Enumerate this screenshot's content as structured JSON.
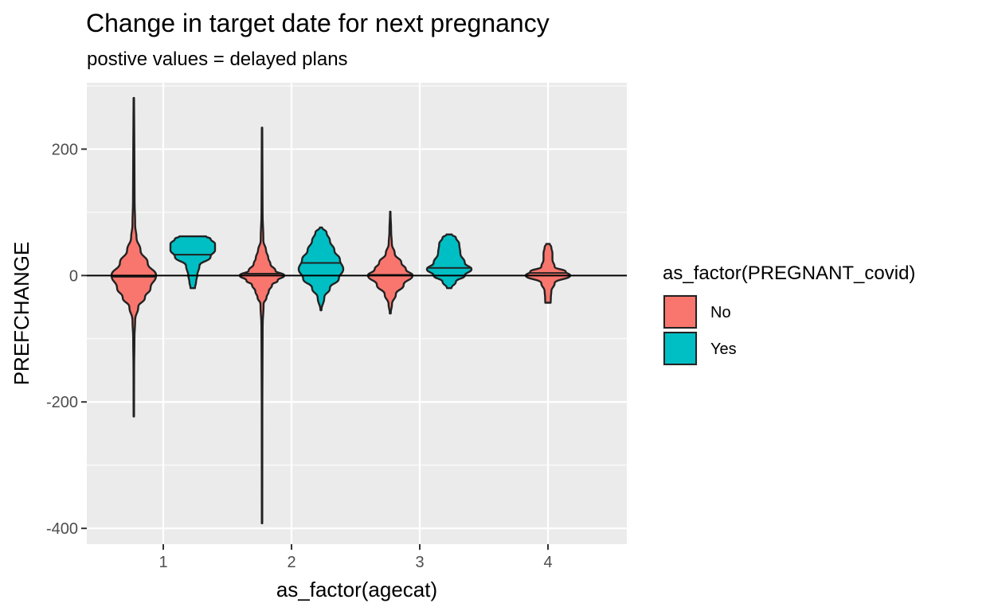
{
  "chart_data": {
    "type": "violin",
    "title": "Change in target date for next pregnancy",
    "subtitle": "postive values = delayed plans",
    "xlabel": "as_factor(agecat)",
    "ylabel": "PREFCHANGE",
    "categories": [
      "1",
      "2",
      "3",
      "4"
    ],
    "y_ticks": [
      -400,
      -200,
      0,
      200
    ],
    "y_tick_labels": [
      "-400",
      "-200",
      "0",
      "200"
    ],
    "ylim": [
      -425,
      305
    ],
    "grid": true,
    "reference_line_y": 0,
    "legend": {
      "title": "as_factor(PREGNANT_covid)",
      "position": "right",
      "entries": [
        {
          "label": "No",
          "color": "#F8766D"
        },
        {
          "label": "Yes",
          "color": "#00BFC4"
        }
      ]
    },
    "series": [
      {
        "name": "No",
        "color": "#F8766D",
        "violins": [
          {
            "category": "1",
            "min": -223,
            "max": 281,
            "median": -2,
            "profile": [
              [
                -223,
                0.01
              ],
              [
                -150,
                0.015
              ],
              [
                -100,
                0.03
              ],
              [
                -70,
                0.06
              ],
              [
                -50,
                0.2
              ],
              [
                -35,
                0.5
              ],
              [
                -20,
                0.75
              ],
              [
                0,
                1.0
              ],
              [
                20,
                0.62
              ],
              [
                40,
                0.3
              ],
              [
                60,
                0.12
              ],
              [
                80,
                0.06
              ],
              [
                120,
                0.035
              ],
              [
                200,
                0.025
              ],
              [
                281,
                0.01
              ]
            ]
          },
          {
            "category": "2",
            "min": -392,
            "max": 234,
            "median": 3,
            "profile": [
              [
                -392,
                0.01
              ],
              [
                -200,
                0.015
              ],
              [
                -80,
                0.03
              ],
              [
                -45,
                0.07
              ],
              [
                -35,
                0.2
              ],
              [
                -25,
                0.3
              ],
              [
                -15,
                0.45
              ],
              [
                -8,
                0.7
              ],
              [
                0,
                1.0
              ],
              [
                8,
                0.6
              ],
              [
                18,
                0.38
              ],
              [
                28,
                0.28
              ],
              [
                40,
                0.18
              ],
              [
                55,
                0.06
              ],
              [
                100,
                0.025
              ],
              [
                234,
                0.01
              ]
            ]
          },
          {
            "category": "3",
            "min": -60,
            "max": 101,
            "median": 1,
            "profile": [
              [
                -60,
                0.02
              ],
              [
                -45,
                0.08
              ],
              [
                -30,
                0.25
              ],
              [
                -15,
                0.6
              ],
              [
                0,
                1.0
              ],
              [
                10,
                0.7
              ],
              [
                20,
                0.5
              ],
              [
                35,
                0.2
              ],
              [
                50,
                0.07
              ],
              [
                70,
                0.04
              ],
              [
                101,
                0.01
              ]
            ]
          },
          {
            "category": "4",
            "min": -43,
            "max": 50,
            "median": 4,
            "profile": [
              [
                -43,
                0.12
              ],
              [
                -35,
                0.13
              ],
              [
                -25,
                0.15
              ],
              [
                -12,
                0.3
              ],
              [
                0,
                1.0
              ],
              [
                6,
                0.8
              ],
              [
                14,
                0.3
              ],
              [
                25,
                0.2
              ],
              [
                35,
                0.2
              ],
              [
                45,
                0.15
              ],
              [
                50,
                0.08
              ]
            ]
          }
        ]
      },
      {
        "name": "Yes",
        "color": "#00BFC4",
        "violins": [
          {
            "category": "1",
            "min": -20,
            "max": 62,
            "median": 33,
            "profile": [
              [
                -20,
                0.1
              ],
              [
                -10,
                0.15
              ],
              [
                0,
                0.2
              ],
              [
                15,
                0.3
              ],
              [
                30,
                0.8
              ],
              [
                40,
                1.0
              ],
              [
                50,
                1.0
              ],
              [
                58,
                0.8
              ],
              [
                62,
                0.6
              ]
            ]
          },
          {
            "category": "2",
            "min": -55,
            "max": 76,
            "median": 20,
            "profile": [
              [
                -55,
                0.02
              ],
              [
                -35,
                0.15
              ],
              [
                -20,
                0.4
              ],
              [
                -5,
                0.8
              ],
              [
                10,
                1.0
              ],
              [
                25,
                0.85
              ],
              [
                40,
                0.6
              ],
              [
                55,
                0.4
              ],
              [
                68,
                0.25
              ],
              [
                76,
                0.05
              ]
            ]
          },
          {
            "category": "3",
            "min": -20,
            "max": 65,
            "median": 12,
            "profile": [
              [
                -20,
                0.1
              ],
              [
                -10,
                0.3
              ],
              [
                0,
                0.7
              ],
              [
                10,
                1.0
              ],
              [
                20,
                0.7
              ],
              [
                35,
                0.5
              ],
              [
                50,
                0.45
              ],
              [
                60,
                0.3
              ],
              [
                65,
                0.12
              ]
            ]
          }
        ]
      }
    ]
  }
}
